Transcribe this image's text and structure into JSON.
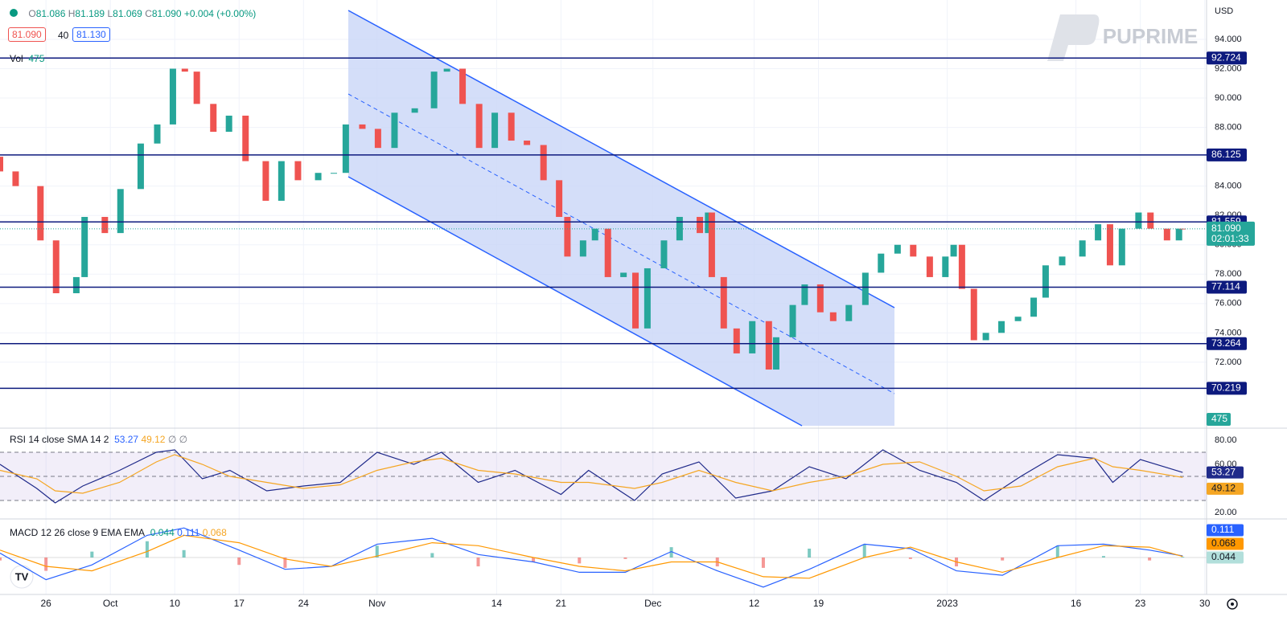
{
  "toolbar": {
    "ohlc": [
      {
        "label": "O",
        "value": "81.086"
      },
      {
        "label": "H",
        "value": "81.189"
      },
      {
        "label": "L",
        "value": "81.069"
      },
      {
        "label": "C",
        "value": "81.090"
      }
    ],
    "change": "+0.004 (+0.00%)",
    "bid": "81.090",
    "spread": "40",
    "ask": "81.130",
    "volume_label": "Vol",
    "volume_value": "475"
  },
  "logo": "PUPRIME",
  "currency": "USD",
  "chart_data": [
    {
      "type": "candlestick",
      "up_color": "#26a69a",
      "down_color": "#ef5350",
      "x": [
        0,
        1.7,
        4.4,
        6.1,
        8.3,
        9.2,
        11.4,
        13.1,
        15.3,
        17.1,
        18.8,
        20.1,
        21.4,
        23.2,
        24.9,
        26.7,
        28.9,
        30.6,
        32.4,
        34.6,
        36.3,
        37.6,
        39.4,
        41.1,
        42.9,
        45.1,
        47.2,
        48.6,
        50.3,
        52.1,
        53.8,
        55.6,
        57.3,
        59.1,
        60.8,
        61.7,
        63.4,
        64.7,
        66.1,
        67.8,
        69.1,
        70.4,
        72.2,
        73.9,
        76.1,
        77.0,
        77.4,
        78.7,
        80.1,
        81.8,
        83.6,
        84.4,
        86.2,
        87.5,
        89.2,
        90.6,
        92.3,
        94.1,
        95.8,
        97.6,
        99.3,
        101.1,
        102.8,
        103.7,
        104.6,
        105.9,
        107.2,
        108.9,
        110.7,
        112.4,
        113.7,
        115.5,
        117.7,
        119.4,
        120.7,
        122.0,
        123.8,
        125.1,
        126.9,
        128.2,
        128.6
      ],
      "open": [
        86.0,
        85.0,
        84.0,
        80.3,
        76.7,
        77.8,
        81.9,
        80.8,
        83.8,
        86.9,
        88.2,
        92.0,
        91.8,
        89.6,
        87.7,
        88.8,
        85.7,
        83.0,
        85.7,
        84.4,
        84.9,
        84.9,
        88.2,
        87.9,
        86.6,
        89.0,
        89.3,
        91.8,
        92.0,
        89.6,
        86.6,
        89.0,
        87.1,
        86.8,
        84.4,
        81.9,
        79.2,
        80.3,
        81.1,
        77.8,
        78.1,
        74.3,
        78.4,
        80.3,
        81.9,
        80.8,
        82.2,
        77.8,
        74.3,
        72.6,
        74.8,
        71.5,
        73.7,
        75.9,
        77.3,
        75.4,
        74.8,
        75.9,
        78.1,
        79.4,
        80.0,
        79.2,
        77.8,
        79.2,
        80.0,
        77.0,
        73.5,
        74.0,
        74.8,
        75.1,
        76.4,
        78.6,
        79.2,
        80.3,
        81.4,
        78.6,
        81.1,
        82.2,
        81.1,
        80.3,
        81.1
      ],
      "close": [
        85.0,
        84.0,
        80.3,
        76.7,
        77.8,
        81.9,
        80.8,
        83.8,
        86.9,
        88.2,
        92.0,
        91.8,
        89.6,
        87.7,
        88.8,
        85.7,
        83.0,
        85.7,
        84.4,
        84.9,
        84.9,
        88.2,
        87.9,
        86.6,
        89.0,
        89.3,
        91.8,
        92.0,
        89.6,
        86.6,
        89.0,
        87.1,
        86.8,
        84.4,
        81.9,
        79.2,
        80.3,
        81.1,
        77.8,
        78.1,
        74.3,
        78.4,
        80.3,
        81.9,
        80.8,
        82.2,
        77.8,
        74.3,
        72.6,
        74.8,
        71.5,
        73.7,
        75.9,
        77.3,
        75.4,
        74.8,
        75.9,
        78.1,
        79.4,
        80.0,
        79.2,
        77.8,
        79.2,
        80.0,
        77.0,
        73.5,
        74.0,
        74.8,
        75.1,
        76.4,
        78.6,
        79.2,
        80.3,
        81.4,
        78.6,
        81.1,
        82.2,
        81.1,
        80.3,
        81.1,
        81.09
      ],
      "xlim": [
        0,
        131.2
      ],
      "xticks": [
        {
          "value": 5,
          "label": "26"
        },
        {
          "value": 12,
          "label": "Oct"
        },
        {
          "value": 19,
          "label": "10"
        },
        {
          "value": 26,
          "label": "17"
        },
        {
          "value": 33,
          "label": "24"
        },
        {
          "value": 41,
          "label": "Nov"
        },
        {
          "value": 54,
          "label": "14"
        },
        {
          "value": 61,
          "label": "21"
        },
        {
          "value": 71,
          "label": "Dec"
        },
        {
          "value": 82,
          "label": "12"
        },
        {
          "value": 89,
          "label": "19"
        },
        {
          "value": 103,
          "label": "2023"
        },
        {
          "value": 117,
          "label": "16"
        },
        {
          "value": 124,
          "label": "23"
        },
        {
          "value": 131,
          "label": "30"
        }
      ],
      "ylim": [
        67.67,
        96.68
      ],
      "yticks": [
        {
          "value": 72,
          "label": "72.000"
        },
        {
          "value": 74,
          "label": "74.000"
        },
        {
          "value": 76,
          "label": "76.000"
        },
        {
          "value": 78,
          "label": "78.000"
        },
        {
          "value": 80,
          "label": "80.000"
        },
        {
          "value": 82,
          "label": "82.000"
        },
        {
          "value": 84,
          "label": "84.000"
        },
        {
          "value": 86,
          "label": "86.000"
        },
        {
          "value": 88,
          "label": "88.000"
        },
        {
          "value": 90,
          "label": "90.000"
        },
        {
          "value": 92,
          "label": "92.000"
        },
        {
          "value": 94,
          "label": "94.000"
        }
      ],
      "levels": [
        92.724,
        86.125,
        81.559,
        77.114,
        73.264,
        70.219
      ],
      "level_color": "#0d1a7e",
      "last_price": {
        "value": 81.09,
        "label": "81.090"
      },
      "countdown": "02:01:33",
      "volume_tag": "475"
    },
    {
      "type": "rsi",
      "title": "RSI 14 close SMA 14 2",
      "extra": "∅ ∅",
      "x": [
        0,
        4,
        6,
        9,
        13,
        17,
        19,
        22,
        25,
        29,
        33,
        37,
        41,
        45,
        48,
        52,
        56,
        61,
        64,
        69,
        72,
        76,
        80,
        84,
        88,
        92,
        96,
        100,
        104,
        107,
        111,
        115,
        119,
        121,
        124,
        128.6
      ],
      "series": [
        {
          "color": "#1f2a8a",
          "values": [
            60,
            40,
            28,
            42,
            55,
            70,
            72,
            48,
            55,
            38,
            42,
            45,
            70,
            60,
            70,
            45,
            55,
            35,
            55,
            30,
            52,
            62,
            32,
            38,
            58,
            48,
            72,
            55,
            45,
            30,
            50,
            68,
            65,
            45,
            64,
            53.27
          ]
        },
        {
          "color": "#f5a623",
          "values": [
            55,
            48,
            38,
            36,
            45,
            62,
            68,
            60,
            50,
            45,
            40,
            43,
            55,
            62,
            65,
            55,
            52,
            45,
            45,
            40,
            45,
            55,
            45,
            38,
            45,
            50,
            60,
            62,
            50,
            38,
            42,
            58,
            65,
            58,
            55,
            49.12
          ]
        }
      ],
      "ylim": [
        15.3,
        88.7
      ],
      "yticks": [
        {
          "value": 20,
          "label": "20.00"
        },
        {
          "value": 40,
          "label": "40.00"
        },
        {
          "value": 60,
          "label": "60.00"
        },
        {
          "value": 80,
          "label": "80.00"
        }
      ],
      "band": [
        30,
        70
      ],
      "levels": [
        70,
        50,
        30
      ]
    },
    {
      "type": "macd",
      "title": "MACD 12 26 close 9 EMA EMA",
      "x": [
        0,
        5,
        10,
        16,
        20,
        26,
        31,
        36,
        41,
        47,
        52,
        58,
        63,
        68,
        73,
        78,
        83,
        88,
        94,
        99,
        104,
        109,
        115,
        120,
        125,
        128.6
      ],
      "histogram": {
        "up_color": "#26a69a",
        "down_color": "#ef5350",
        "values": [
          -0.2,
          -0.9,
          0.4,
          1.1,
          0.5,
          -0.5,
          -0.7,
          0.0,
          0.8,
          0.3,
          -0.6,
          -0.3,
          -0.4,
          -0.1,
          0.7,
          -0.6,
          -0.7,
          0.6,
          0.9,
          -0.1,
          -0.6,
          -0.2,
          0.8,
          0.1,
          -0.2,
          0.044
        ]
      },
      "series": [
        {
          "color": "#2962ff",
          "values": [
            0.3,
            -1.5,
            -0.5,
            1.5,
            2.0,
            0.5,
            -0.8,
            -0.6,
            0.9,
            1.3,
            0.2,
            -0.3,
            -1.0,
            -1.0,
            0.4,
            -0.9,
            -2.0,
            -0.8,
            0.9,
            0.6,
            -0.9,
            -1.2,
            0.8,
            0.9,
            0.5,
            0.111
          ]
        },
        {
          "color": "#ff9800",
          "values": [
            0.5,
            -0.6,
            -0.9,
            0.4,
            1.5,
            1.0,
            -0.1,
            -0.6,
            0.1,
            1.0,
            0.8,
            0.0,
            -0.6,
            -0.9,
            -0.3,
            -0.3,
            -1.3,
            -1.4,
            0.0,
            0.7,
            -0.3,
            -1.0,
            0.0,
            0.8,
            0.7,
            0.068
          ]
        }
      ],
      "ylim": [
        -2.5,
        2.5
      ]
    }
  ]
}
